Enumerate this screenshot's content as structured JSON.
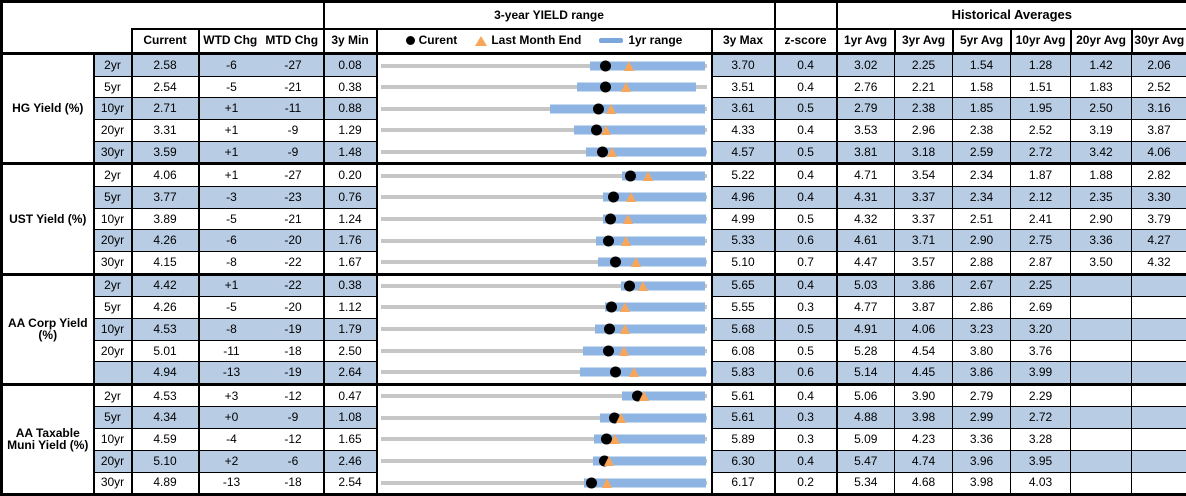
{
  "header": {
    "chart_title": "3-year YIELD range",
    "hist_title": "Historical Averages",
    "col_current": "Current",
    "col_wtd": "WTD Chg",
    "col_mtd": "MTD Chg",
    "col_3y_min": "3y Min",
    "col_3y_max": "3y Max",
    "col_zscore": "z-score",
    "avg_cols": [
      "1yr Avg",
      "3yr Avg",
      "5yr Avg",
      "10yr Avg",
      "20yr Avg",
      "30yr Avg"
    ],
    "legend": {
      "current": "Curent",
      "last_month_end": "Last Month End",
      "range": "1yr range"
    }
  },
  "colors": {
    "row_shade": "#b8cce4",
    "range_bar": "#8db4e2",
    "track_gray": "#c6c6c6",
    "marker_orange": "#f9a65a",
    "marker_black": "#000000",
    "border": "#000000"
  },
  "chart_data": {
    "type": "table-with-range-bullet-rows",
    "description": "Each row: gray track = 3y min..max, blue bar = estimated 1yr range, black dot = current yield, orange triangle = last month end yield. Values in percent.",
    "groups": [
      {
        "label": "HG Yield (%)",
        "rows": [
          {
            "tenor": "2yr",
            "current": "2.58",
            "wtd": "-6",
            "mtd": "-27",
            "min": "0.08",
            "max": "3.70",
            "z": "0.4",
            "avgs": [
              "3.02",
              "2.25",
              "1.54",
              "1.28",
              "1.42",
              "2.06"
            ],
            "lme": 2.85,
            "bar_lo": 2.41,
            "bar_hi": 3.7
          },
          {
            "tenor": "5yr",
            "current": "2.54",
            "wtd": "-5",
            "mtd": "-21",
            "min": "0.38",
            "max": "3.51",
            "z": "0.4",
            "avgs": [
              "2.76",
              "2.21",
              "1.58",
              "1.51",
              "1.83",
              "2.52"
            ],
            "lme": 2.75,
            "bar_lo": 2.27,
            "bar_hi": 3.42
          },
          {
            "tenor": "10yr",
            "current": "2.71",
            "wtd": "+1",
            "mtd": "-11",
            "min": "0.88",
            "max": "3.61",
            "z": "0.5",
            "avgs": [
              "2.79",
              "2.38",
              "1.85",
              "1.95",
              "2.50",
              "3.16"
            ],
            "lme": 2.82,
            "bar_lo": 2.3,
            "bar_hi": 3.61
          },
          {
            "tenor": "20yr",
            "current": "3.31",
            "wtd": "+1",
            "mtd": "-9",
            "min": "1.29",
            "max": "4.33",
            "z": "0.4",
            "avgs": [
              "3.53",
              "2.96",
              "2.38",
              "2.52",
              "3.19",
              "3.87"
            ],
            "lme": 3.4,
            "bar_lo": 3.1,
            "bar_hi": 4.33
          },
          {
            "tenor": "30yr",
            "current": "3.59",
            "wtd": "+1",
            "mtd": "-9",
            "min": "1.48",
            "max": "4.57",
            "z": "0.5",
            "avgs": [
              "3.81",
              "3.18",
              "2.59",
              "2.72",
              "3.42",
              "4.06"
            ],
            "lme": 3.68,
            "bar_lo": 3.43,
            "bar_hi": 4.57
          }
        ]
      },
      {
        "label": "UST Yield (%)",
        "rows": [
          {
            "tenor": "2yr",
            "current": "4.06",
            "wtd": "+1",
            "mtd": "-27",
            "min": "0.20",
            "max": "5.22",
            "z": "0.4",
            "avgs": [
              "4.71",
              "3.54",
              "2.34",
              "1.87",
              "1.88",
              "2.82"
            ],
            "lme": 4.33,
            "bar_lo": 3.92,
            "bar_hi": 5.22
          },
          {
            "tenor": "5yr",
            "current": "3.77",
            "wtd": "-3",
            "mtd": "-23",
            "min": "0.76",
            "max": "4.96",
            "z": "0.4",
            "avgs": [
              "4.31",
              "3.37",
              "2.34",
              "2.12",
              "2.35",
              "3.30"
            ],
            "lme": 4.0,
            "bar_lo": 3.63,
            "bar_hi": 4.96
          },
          {
            "tenor": "10yr",
            "current": "3.89",
            "wtd": "-5",
            "mtd": "-21",
            "min": "1.24",
            "max": "4.99",
            "z": "0.5",
            "avgs": [
              "4.32",
              "3.37",
              "2.51",
              "2.41",
              "2.90",
              "3.79"
            ],
            "lme": 4.1,
            "bar_lo": 3.8,
            "bar_hi": 4.99
          },
          {
            "tenor": "20yr",
            "current": "4.26",
            "wtd": "-6",
            "mtd": "-20",
            "min": "1.76",
            "max": "5.33",
            "z": "0.6",
            "avgs": [
              "4.61",
              "3.71",
              "2.90",
              "2.75",
              "3.36",
              "4.27"
            ],
            "lme": 4.46,
            "bar_lo": 4.12,
            "bar_hi": 5.33
          },
          {
            "tenor": "30yr",
            "current": "4.15",
            "wtd": "-8",
            "mtd": "-22",
            "min": "1.67",
            "max": "5.10",
            "z": "0.7",
            "avgs": [
              "4.47",
              "3.57",
              "2.88",
              "2.87",
              "3.50",
              "4.32"
            ],
            "lme": 4.37,
            "bar_lo": 3.96,
            "bar_hi": 5.1
          }
        ]
      },
      {
        "label": "AA Corp Yield (%)",
        "rows": [
          {
            "tenor": "2yr",
            "current": "4.42",
            "wtd": "+1",
            "mtd": "-22",
            "min": "0.38",
            "max": "5.65",
            "z": "0.4",
            "avgs": [
              "5.03",
              "3.86",
              "2.67",
              "2.25",
              "",
              ""
            ],
            "lme": 4.64,
            "bar_lo": 4.28,
            "bar_hi": 5.65
          },
          {
            "tenor": "5yr",
            "current": "4.26",
            "wtd": "-5",
            "mtd": "-20",
            "min": "1.12",
            "max": "5.55",
            "z": "0.3",
            "avgs": [
              "4.77",
              "3.87",
              "2.86",
              "2.69",
              "",
              ""
            ],
            "lme": 4.46,
            "bar_lo": 4.18,
            "bar_hi": 5.55
          },
          {
            "tenor": "10yr",
            "current": "4.53",
            "wtd": "-8",
            "mtd": "-19",
            "min": "1.79",
            "max": "5.68",
            "z": "0.5",
            "avgs": [
              "4.91",
              "4.06",
              "3.23",
              "3.20",
              "",
              ""
            ],
            "lme": 4.72,
            "bar_lo": 4.35,
            "bar_hi": 5.68
          },
          {
            "tenor": "20yr",
            "current": "5.01",
            "wtd": "-11",
            "mtd": "-18",
            "min": "2.50",
            "max": "6.08",
            "z": "0.5",
            "avgs": [
              "5.28",
              "4.54",
              "3.80",
              "3.76",
              "",
              ""
            ],
            "lme": 5.19,
            "bar_lo": 4.73,
            "bar_hi": 6.08
          },
          {
            "tenor": "",
            "current": "4.94",
            "wtd": "-13",
            "mtd": "-19",
            "min": "2.64",
            "max": "5.83",
            "z": "0.6",
            "avgs": [
              "5.14",
              "4.45",
              "3.86",
              "3.99",
              "",
              ""
            ],
            "lme": 5.13,
            "bar_lo": 4.59,
            "bar_hi": 5.83
          }
        ]
      },
      {
        "label": "AA Taxable Muni Yield (%)",
        "rows": [
          {
            "tenor": "2yr",
            "current": "4.53",
            "wtd": "+3",
            "mtd": "-12",
            "min": "0.47",
            "max": "5.61",
            "z": "0.4",
            "avgs": [
              "5.06",
              "3.90",
              "2.79",
              "2.29",
              "",
              ""
            ],
            "lme": 4.65,
            "bar_lo": 4.28,
            "bar_hi": 5.61
          },
          {
            "tenor": "5yr",
            "current": "4.34",
            "wtd": "+0",
            "mtd": "-9",
            "min": "1.08",
            "max": "5.61",
            "z": "0.3",
            "avgs": [
              "4.88",
              "3.98",
              "2.99",
              "2.72",
              "",
              ""
            ],
            "lme": 4.43,
            "bar_lo": 4.14,
            "bar_hi": 5.61
          },
          {
            "tenor": "10yr",
            "current": "4.59",
            "wtd": "-4",
            "mtd": "-12",
            "min": "1.65",
            "max": "5.89",
            "z": "0.3",
            "avgs": [
              "5.09",
              "4.23",
              "3.36",
              "3.28",
              "",
              ""
            ],
            "lme": 4.71,
            "bar_lo": 4.43,
            "bar_hi": 5.89
          },
          {
            "tenor": "20yr",
            "current": "5.10",
            "wtd": "+2",
            "mtd": "-6",
            "min": "2.46",
            "max": "6.30",
            "z": "0.4",
            "avgs": [
              "5.47",
              "4.74",
              "3.96",
              "3.95",
              "",
              ""
            ],
            "lme": 5.16,
            "bar_lo": 4.97,
            "bar_hi": 6.3
          },
          {
            "tenor": "30yr",
            "current": "4.89",
            "wtd": "-13",
            "mtd": "-18",
            "min": "2.54",
            "max": "6.17",
            "z": "0.2",
            "avgs": [
              "5.34",
              "4.68",
              "3.98",
              "4.03",
              "",
              ""
            ],
            "lme": 5.07,
            "bar_lo": 4.81,
            "bar_hi": 6.17
          }
        ]
      }
    ]
  }
}
